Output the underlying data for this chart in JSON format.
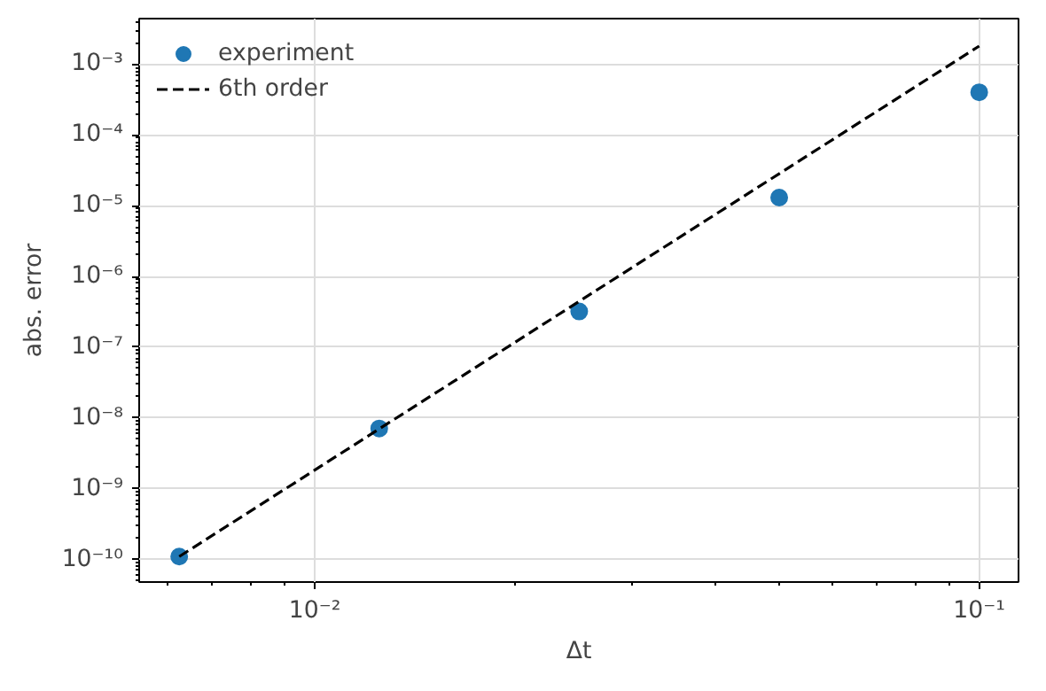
{
  "chart_data": {
    "type": "scatter",
    "xlabel": "Δt",
    "ylabel": "abs. error",
    "log": "xy",
    "grid": true,
    "legend": "top left",
    "xlim": [
      0.00544,
      0.1146
    ],
    "ylim": [
      4.8e-11,
      0.0044
    ],
    "xticks": [
      {
        "value": 0.01,
        "label": "10⁻²"
      },
      {
        "value": 0.1,
        "label": "10⁻¹"
      }
    ],
    "yticks": [
      {
        "value": 1e-10,
        "label": "10⁻¹⁰"
      },
      {
        "value": 1e-09,
        "label": "10⁻⁹"
      },
      {
        "value": 1e-08,
        "label": "10⁻⁸"
      },
      {
        "value": 1e-07,
        "label": "10⁻⁷"
      },
      {
        "value": 1e-06,
        "label": "10⁻⁶"
      },
      {
        "value": 1e-05,
        "label": "10⁻⁵"
      },
      {
        "value": 0.0001,
        "label": "10⁻⁴"
      },
      {
        "value": 0.001,
        "label": "10⁻³"
      }
    ],
    "series": [
      {
        "name": "experiment",
        "marker": "circle",
        "color": "#1f77b4",
        "x": [
          0.00625,
          0.0125,
          0.025,
          0.05,
          0.1
        ],
        "values": [
          1.1e-10,
          7.1e-09,
          3.2e-07,
          1.3e-05,
          0.0004
        ]
      },
      {
        "name": "6th order",
        "type": "line",
        "line_style": "dashed",
        "color": "#000000",
        "x": [
          0.00625,
          0.1
        ],
        "values": [
          1.1e-10,
          0.0018
        ]
      }
    ]
  }
}
